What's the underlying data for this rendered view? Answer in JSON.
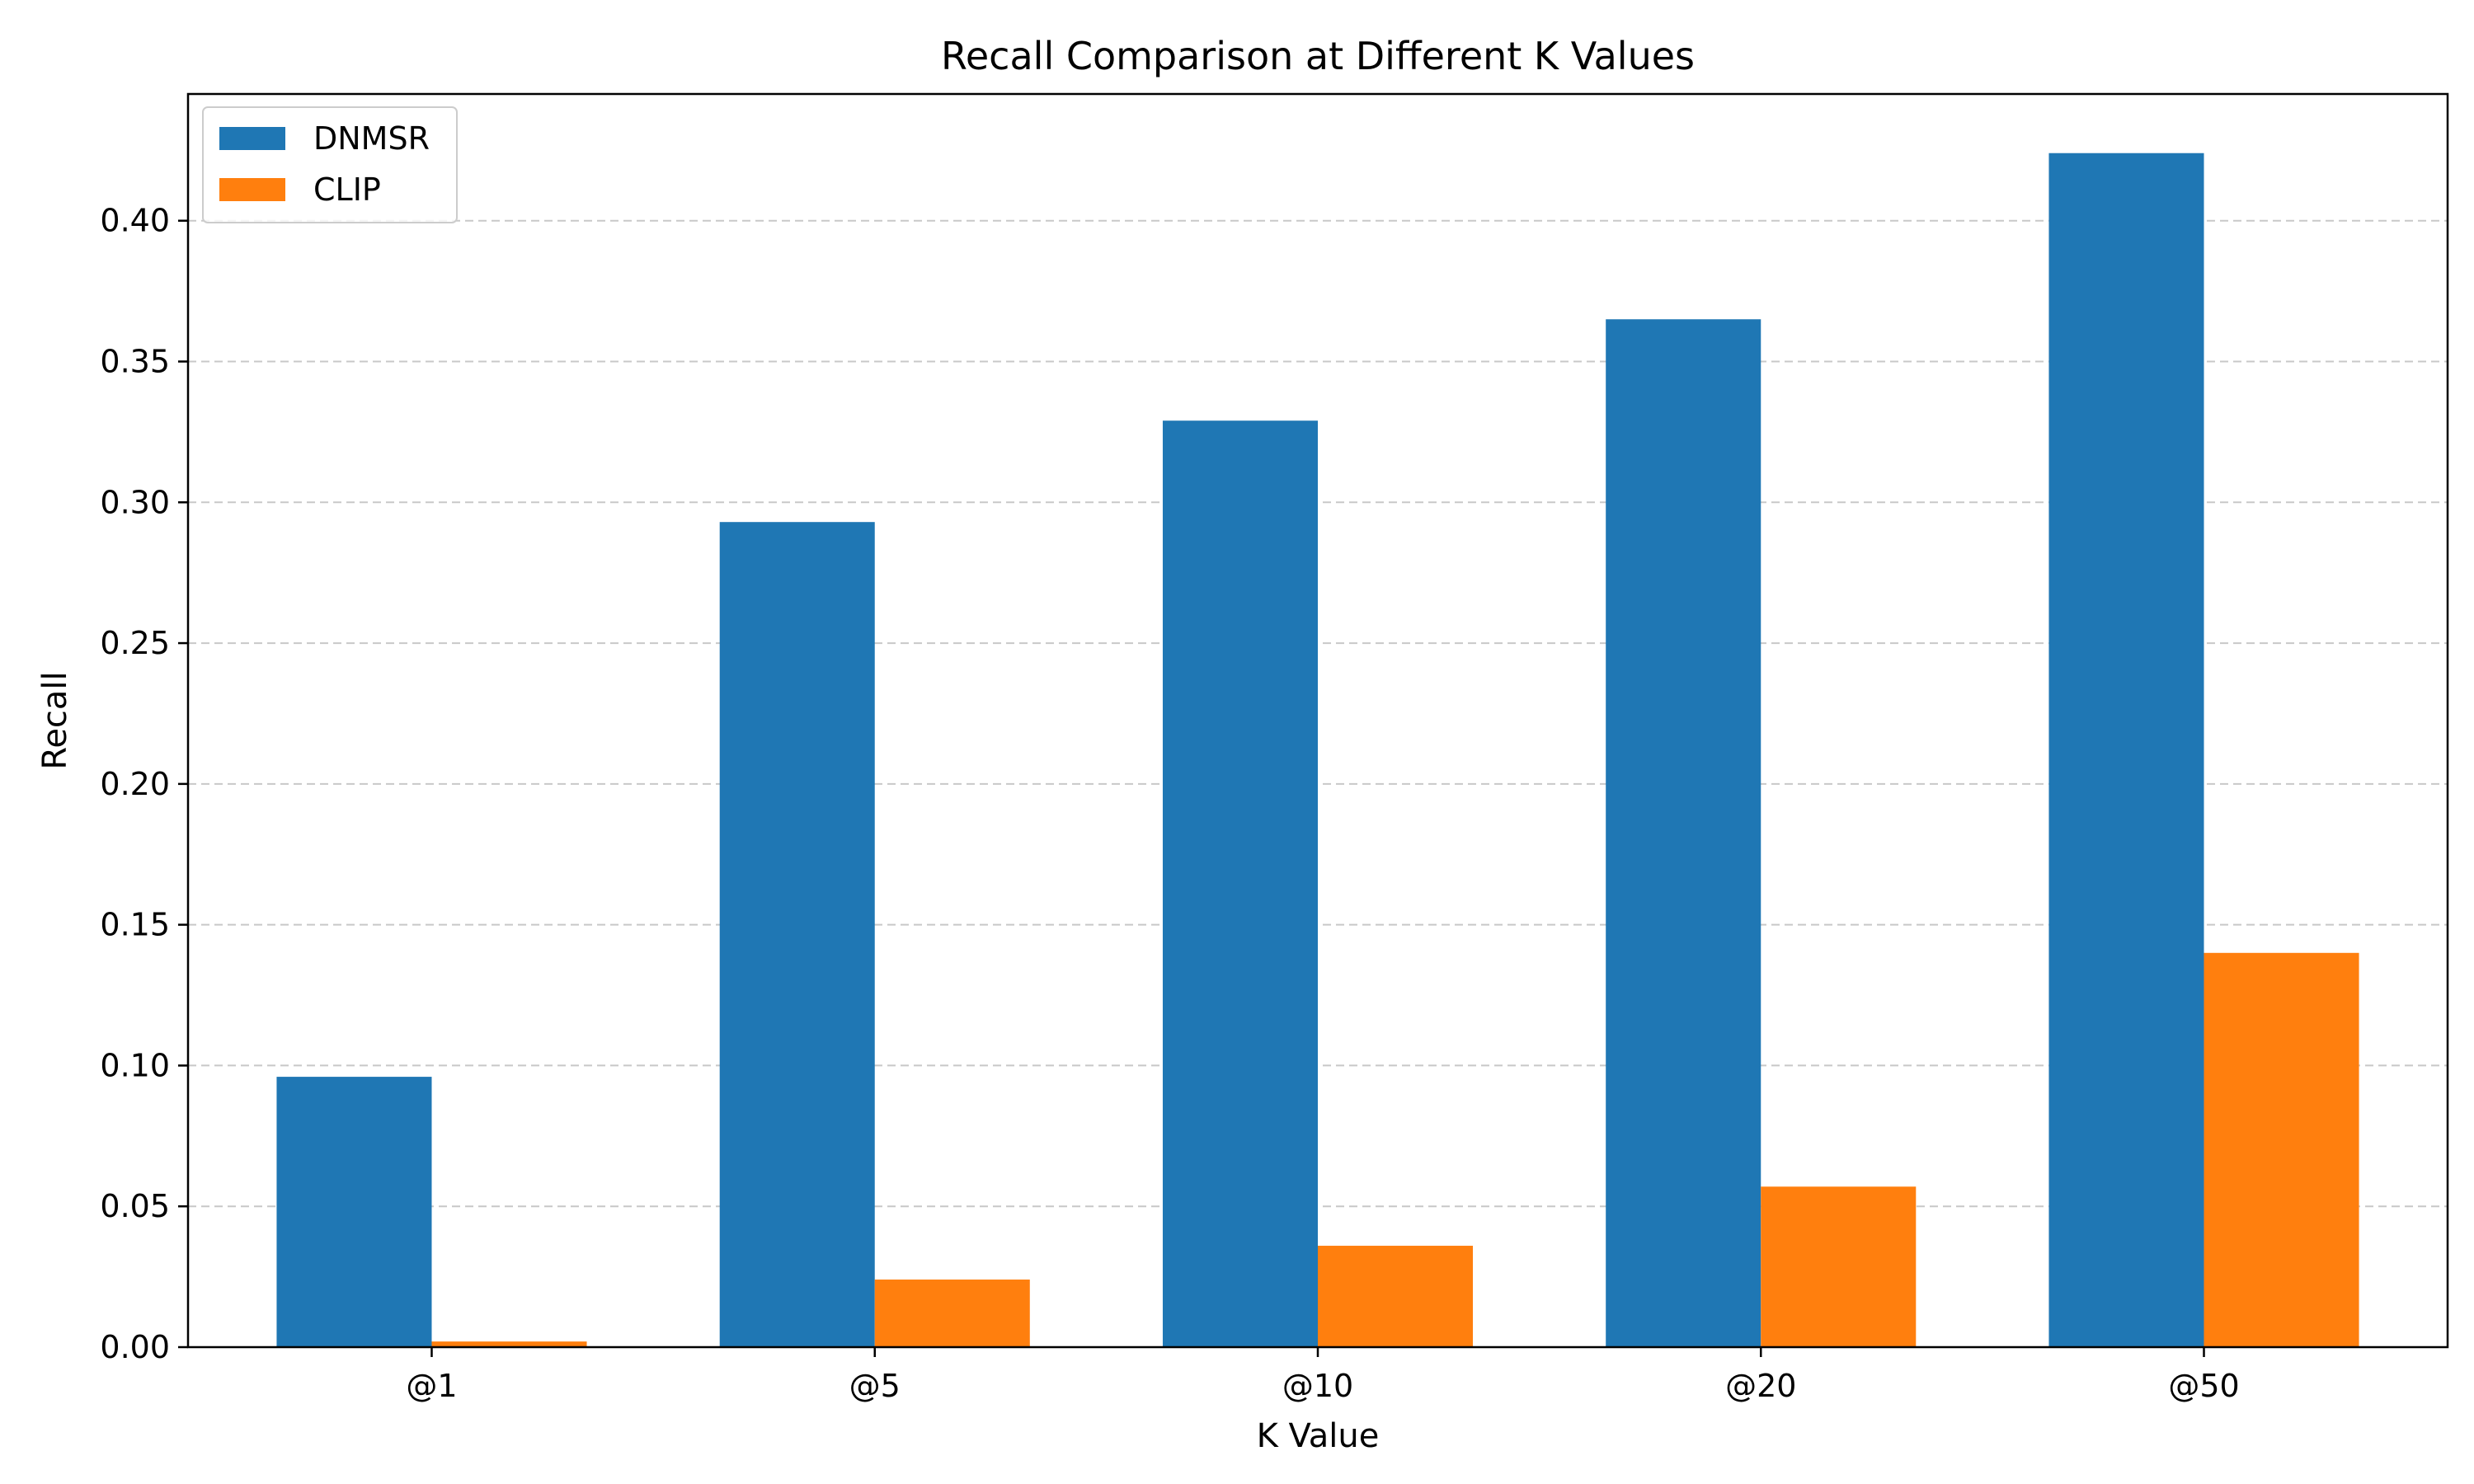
{
  "chart_data": {
    "type": "bar",
    "title": "Recall Comparison at Different K Values",
    "xlabel": "K Value",
    "ylabel": "Recall",
    "categories": [
      "@1",
      "@5",
      "@10",
      "@20",
      "@50"
    ],
    "series": [
      {
        "name": "DNMSR",
        "color": "#1f77b4",
        "values": [
          0.096,
          0.293,
          0.329,
          0.365,
          0.424
        ]
      },
      {
        "name": "CLIP",
        "color": "#ff7f0e",
        "values": [
          0.002,
          0.024,
          0.036,
          0.057,
          0.14
        ]
      }
    ],
    "ylim": [
      0,
      0.445
    ],
    "yticks": [
      0.0,
      0.05,
      0.1,
      0.15,
      0.2,
      0.25,
      0.3,
      0.35,
      0.4
    ],
    "ytick_labels": [
      "0.00",
      "0.05",
      "0.10",
      "0.15",
      "0.20",
      "0.25",
      "0.30",
      "0.35",
      "0.40"
    ],
    "grid": "y-dashed",
    "legend_position": "top-left"
  }
}
